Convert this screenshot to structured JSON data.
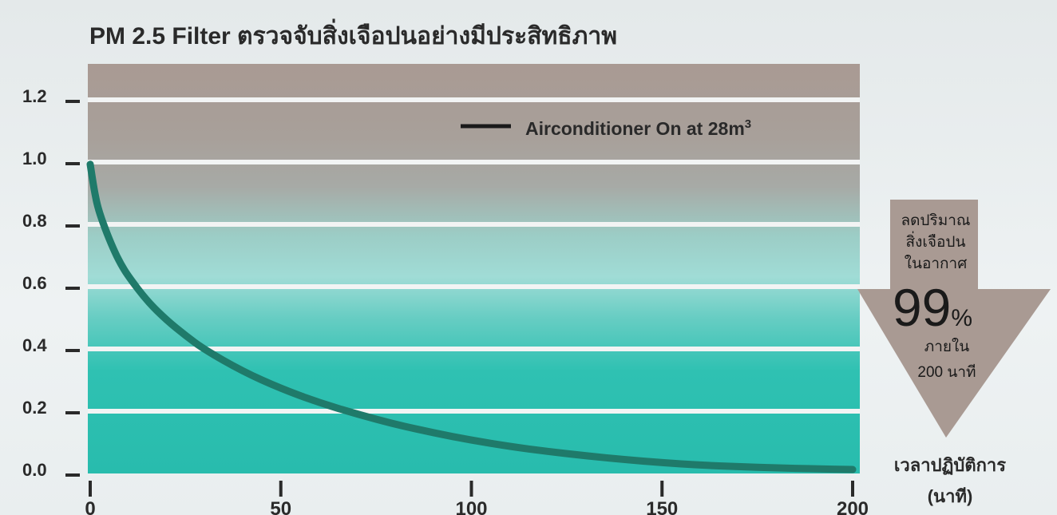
{
  "chart_data": {
    "type": "line",
    "title": "PM 2.5 Filter ตรวจจับสิ่งเจือปนอย่างมีประสิทธิภาพ",
    "xlabel": [
      "เวลาปฏิบัติการ",
      "(นาที)"
    ],
    "ylabel": "",
    "xlim": [
      0,
      200
    ],
    "ylim": [
      0,
      1.3
    ],
    "xticks": [
      0,
      50,
      100,
      150,
      200
    ],
    "yticks": [
      0.0,
      0.2,
      0.4,
      0.6,
      0.8,
      1.0,
      1.2
    ],
    "ytick_labels": [
      "0.0",
      "0.2",
      "0.4",
      "0.6",
      "0.8",
      "1.0",
      "1.2"
    ],
    "xtick_labels": [
      "0",
      "50",
      "100",
      "150",
      "200"
    ],
    "grid": "horizontal bands",
    "series": [
      {
        "name": "Airconditioner On at 28m³",
        "color": "#1f7a6a",
        "x": [
          0,
          1,
          2,
          4,
          6,
          8,
          10,
          15,
          20,
          25,
          30,
          40,
          50,
          60,
          70,
          80,
          90,
          100,
          110,
          120,
          130,
          140,
          150,
          160,
          170,
          180,
          190,
          200
        ],
        "y": [
          0.98,
          0.9,
          0.84,
          0.77,
          0.71,
          0.66,
          0.62,
          0.54,
          0.48,
          0.43,
          0.385,
          0.315,
          0.26,
          0.215,
          0.178,
          0.145,
          0.118,
          0.094,
          0.074,
          0.058,
          0.044,
          0.032,
          0.022,
          0.014,
          0.009,
          0.005,
          0.002,
          0.0
        ]
      }
    ],
    "legend": {
      "label": "Airconditioner On at 28m",
      "superscript": "3",
      "position": "top-right"
    },
    "callout": {
      "lines": [
        "ลดปริมาณ",
        "สิ่งเจือปน",
        "ในอากาศ"
      ],
      "value": "99",
      "unit": "%",
      "footer": [
        "ภายใน",
        "200 นาที"
      ]
    },
    "colors": {
      "band_top": "#a99a93",
      "band_mid": "#a4a7a2",
      "band_teal_light": "#9fd8d2",
      "band_teal": "#2bbfb0",
      "line": "#1f7a6a",
      "arrow": "#a99a93"
    }
  }
}
